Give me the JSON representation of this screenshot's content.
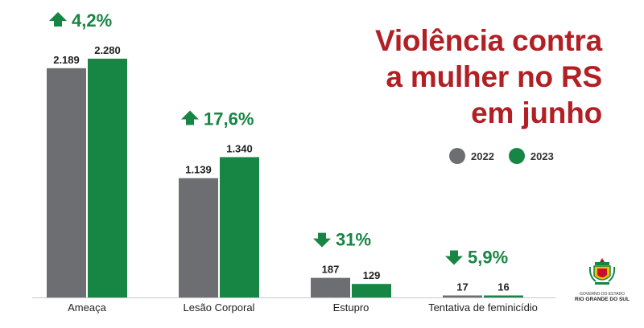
{
  "title_lines": [
    "Violência contra",
    "a mulher no RS",
    "em junho"
  ],
  "colors": {
    "title": "#b21f24",
    "y2022": "#6d6e72",
    "y2023": "#178543",
    "axis": "#c8c8c8"
  },
  "legend": [
    {
      "label": "2022",
      "color": "#6d6e72"
    },
    {
      "label": "2023",
      "color": "#178543"
    }
  ],
  "logo": {
    "line1": "GOVERNO DO ESTADO",
    "line2": "RIO GRANDE DO SUL"
  },
  "chart_data": {
    "type": "bar",
    "categories": [
      "Ameaça",
      "Lesão Corporal",
      "Estupro",
      "Tentativa de feminicídio"
    ],
    "series": [
      {
        "name": "2022",
        "values": [
          2189,
          1139,
          187,
          17
        ],
        "labels": [
          "2.189",
          "1.139",
          "187",
          "17"
        ]
      },
      {
        "name": "2023",
        "values": [
          2280,
          1340,
          129,
          16
        ],
        "labels": [
          "2.280",
          "1.340",
          "129",
          "16"
        ]
      }
    ],
    "changes": [
      {
        "direction": "up",
        "text": "4,2%"
      },
      {
        "direction": "up",
        "text": "17,6%"
      },
      {
        "direction": "down",
        "text": "31%"
      },
      {
        "direction": "down",
        "text": "5,9%"
      }
    ],
    "ylim": [
      0,
      2280
    ],
    "xlabel": "",
    "ylabel": "",
    "legend_position": "right",
    "grid": false
  }
}
